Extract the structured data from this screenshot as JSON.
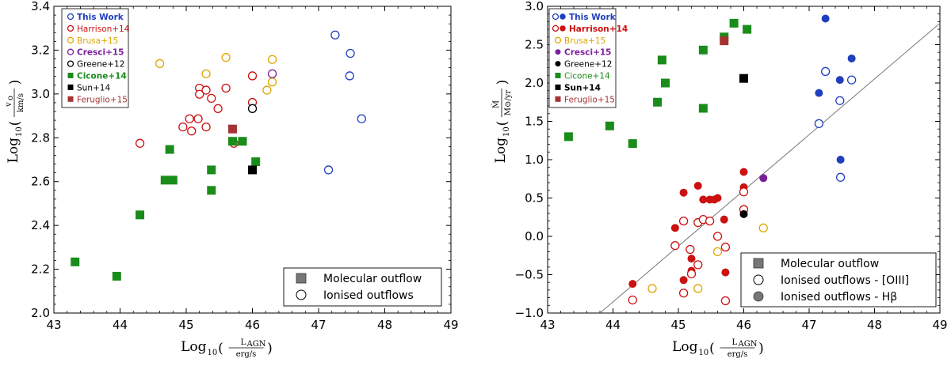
{
  "chart_data": [
    {
      "type": "scatter",
      "xlim": [
        43,
        49
      ],
      "ylim": [
        2.0,
        3.5
      ],
      "xticks": [
        "43",
        "44",
        "45",
        "46",
        "47",
        "48",
        "49"
      ],
      "yticks": [
        "2.0",
        "2.2",
        "2.4",
        "2.6",
        "2.8",
        "3.0",
        "3.2",
        "3.4"
      ],
      "xlabel": {
        "prefix": "Log",
        "sub": "10",
        "num": "L",
        "num_sub": "AGN",
        "den": "erg/s"
      },
      "ylabel": {
        "prefix": "Log",
        "sub": "10",
        "num": "v",
        "num_sub": "o",
        "den": "km/s"
      },
      "legend_top": [
        {
          "label": "This Work",
          "color": "#1f3fbf",
          "marker": "circle-open",
          "bold": true
        },
        {
          "label": "Harrison+14",
          "color": "#cc1111",
          "marker": "circle-open",
          "bold": false
        },
        {
          "label": "Brusa+15",
          "color": "#e0a400",
          "marker": "circle-open",
          "bold": false
        },
        {
          "label": "Cresci+15",
          "color": "#7a1f9a",
          "marker": "circle-open",
          "bold": true
        },
        {
          "label": "Greene+12",
          "color": "#000000",
          "marker": "circle-open",
          "bold": false
        },
        {
          "label": "Cicone+14",
          "color": "#1a8c1a",
          "marker": "square",
          "bold": true
        },
        {
          "label": "Sun+14",
          "color": "#000000",
          "marker": "square",
          "bold": false
        },
        {
          "label": "Feruglio+15",
          "color": "#a63333",
          "marker": "square",
          "bold": false
        }
      ],
      "legend_bottom": [
        {
          "label": "Molecular outflow",
          "marker": "square"
        },
        {
          "label": "Ionised outflows",
          "marker": "circle-open"
        }
      ],
      "series": [
        {
          "name": "This Work",
          "color": "#1f3fbf",
          "marker": "circle-open",
          "points": [
            [
              47.25,
              3.36
            ],
            [
              47.48,
              3.27
            ],
            [
              47.47,
              3.16
            ],
            [
              47.65,
              2.95
            ],
            [
              47.15,
              2.7
            ]
          ]
        },
        {
          "name": "Harrison+14",
          "color": "#cc1111",
          "marker": "circle-open",
          "points": [
            [
              44.3,
              2.83
            ],
            [
              44.95,
              2.91
            ],
            [
              45.05,
              2.95
            ],
            [
              45.08,
              2.89
            ],
            [
              45.18,
              2.95
            ],
            [
              45.2,
              3.1
            ],
            [
              45.2,
              3.07
            ],
            [
              45.3,
              3.09
            ],
            [
              45.3,
              2.91
            ],
            [
              45.38,
              3.05
            ],
            [
              45.48,
              3.0
            ],
            [
              45.6,
              3.1
            ],
            [
              45.72,
              2.83
            ],
            [
              46.0,
              3.16
            ],
            [
              46.0,
              3.03
            ]
          ]
        },
        {
          "name": "Brusa+15",
          "color": "#e0a400",
          "marker": "circle-open",
          "points": [
            [
              44.6,
              3.22
            ],
            [
              45.3,
              3.17
            ],
            [
              45.6,
              3.25
            ],
            [
              46.22,
              3.09
            ],
            [
              46.3,
              3.24
            ],
            [
              46.3,
              3.13
            ]
          ]
        },
        {
          "name": "Cresci+15",
          "color": "#7a1f9a",
          "marker": "circle-open",
          "points": [
            [
              46.3,
              3.17
            ]
          ]
        },
        {
          "name": "Greene+12",
          "color": "#000000",
          "marker": "circle-open",
          "points": [
            [
              46.0,
              3.0
            ]
          ]
        },
        {
          "name": "Cicone+14",
          "color": "#1a8c1a",
          "marker": "square",
          "points": [
            [
              43.32,
              2.25
            ],
            [
              43.95,
              2.18
            ],
            [
              44.3,
              2.48
            ],
            [
              44.75,
              2.8
            ],
            [
              44.68,
              2.65
            ],
            [
              44.8,
              2.65
            ],
            [
              45.38,
              2.7
            ],
            [
              45.38,
              2.6
            ],
            [
              45.7,
              2.84
            ],
            [
              45.85,
              2.84
            ],
            [
              46.05,
              2.74
            ]
          ]
        },
        {
          "name": "Sun+14",
          "color": "#000000",
          "marker": "square",
          "points": [
            [
              46.0,
              2.7
            ]
          ]
        },
        {
          "name": "Feruglio+15",
          "color": "#a63333",
          "marker": "square",
          "points": [
            [
              45.7,
              2.9
            ]
          ]
        }
      ]
    },
    {
      "type": "scatter",
      "xlim": [
        43,
        49
      ],
      "ylim": [
        -1.0,
        3.0
      ],
      "xticks": [
        "43",
        "44",
        "45",
        "46",
        "47",
        "48",
        "49"
      ],
      "yticks": [
        "−1.0",
        "−0.5",
        "0.0",
        "0.5",
        "1.0",
        "1.5",
        "2.0",
        "2.5",
        "3.0"
      ],
      "xlabel": {
        "prefix": "Log",
        "sub": "10",
        "num": "L",
        "num_sub": "AGN",
        "den": "erg/s"
      },
      "ylabel": {
        "prefix": "Log",
        "sub": "10",
        "num": "Ṁ",
        "num_sub": "",
        "den": "M⊙/yr"
      },
      "trend_line": [
        [
          43.8,
          -1.0
        ],
        [
          49.0,
          2.78
        ]
      ],
      "legend_top": [
        {
          "label": "This Work",
          "color": "#1f3fbf",
          "marker": "circle-both",
          "bold": true
        },
        {
          "label": "Harrison+14",
          "color": "#cc1111",
          "marker": "circle-both",
          "bold": true
        },
        {
          "label": "Brusa+15",
          "color": "#e0a400",
          "marker": "circle-open",
          "bold": false
        },
        {
          "label": "Cresci+15",
          "color": "#7a1f9a",
          "marker": "circle-filled",
          "bold": true
        },
        {
          "label": "Greene+12",
          "color": "#000000",
          "marker": "circle-filled",
          "bold": false
        },
        {
          "label": "Cicone+14",
          "color": "#1a8c1a",
          "marker": "square",
          "bold": false
        },
        {
          "label": "Sun+14",
          "color": "#000000",
          "marker": "square",
          "bold": true
        },
        {
          "label": "Feruglio+15",
          "color": "#a63333",
          "marker": "square",
          "bold": false
        }
      ],
      "legend_bottom": [
        {
          "label": "Molecular outflow",
          "marker": "square"
        },
        {
          "label": "Ionised outflows - [OIII]",
          "marker": "circle-open"
        },
        {
          "label": "Ionised outflows - Hβ",
          "marker": "circle-filled"
        }
      ],
      "series": [
        {
          "name": "This Work",
          "color": "#1f3fbf",
          "marker": "circle-filled",
          "points": [
            [
              47.25,
              2.84
            ],
            [
              47.65,
              2.32
            ],
            [
              47.47,
              2.04
            ],
            [
              47.15,
              1.87
            ],
            [
              47.48,
              1.0
            ]
          ]
        },
        {
          "name": "This Work",
          "color": "#1f3fbf",
          "marker": "circle-open",
          "points": [
            [
              47.25,
              2.15
            ],
            [
              47.65,
              2.04
            ],
            [
              47.47,
              1.77
            ],
            [
              47.15,
              1.47
            ],
            [
              47.48,
              0.77
            ]
          ]
        },
        {
          "name": "Harrison+14",
          "color": "#cc1111",
          "marker": "circle-filled",
          "points": [
            [
              44.3,
              -0.62
            ],
            [
              44.95,
              0.11
            ],
            [
              45.08,
              0.57
            ],
            [
              45.08,
              -0.57
            ],
            [
              45.2,
              -0.29
            ],
            [
              45.3,
              0.66
            ],
            [
              45.2,
              -0.45
            ],
            [
              45.38,
              0.48
            ],
            [
              45.48,
              0.48
            ],
            [
              45.6,
              0.5
            ],
            [
              45.7,
              0.22
            ],
            [
              45.72,
              -0.47
            ],
            [
              46.0,
              0.84
            ],
            [
              46.0,
              0.64
            ],
            [
              45.55,
              0.48
            ]
          ]
        },
        {
          "name": "Harrison+14",
          "color": "#cc1111",
          "marker": "circle-open",
          "points": [
            [
              44.3,
              -0.83
            ],
            [
              44.95,
              -0.12
            ],
            [
              45.08,
              0.2
            ],
            [
              45.08,
              -0.74
            ],
            [
              45.18,
              -0.17
            ],
            [
              45.2,
              -0.49
            ],
            [
              45.3,
              0.18
            ],
            [
              45.3,
              -0.37
            ],
            [
              45.38,
              0.22
            ],
            [
              45.48,
              0.2
            ],
            [
              45.6,
              0.0
            ],
            [
              45.72,
              -0.84
            ],
            [
              45.72,
              -0.14
            ],
            [
              46.0,
              0.58
            ],
            [
              46.0,
              0.35
            ]
          ]
        },
        {
          "name": "Brusa+15",
          "color": "#e0a400",
          "marker": "circle-open",
          "points": [
            [
              44.6,
              -0.68
            ],
            [
              45.3,
              -0.68
            ],
            [
              45.6,
              -0.2
            ],
            [
              46.3,
              0.11
            ]
          ]
        },
        {
          "name": "Cresci+15",
          "color": "#7a1f9a",
          "marker": "circle-filled",
          "points": [
            [
              46.3,
              0.76
            ]
          ]
        },
        {
          "name": "Greene+12",
          "color": "#000000",
          "marker": "circle-filled",
          "points": [
            [
              46.0,
              0.29
            ]
          ]
        },
        {
          "name": "Cicone+14",
          "color": "#1a8c1a",
          "marker": "square",
          "points": [
            [
              43.32,
              1.3
            ],
            [
              43.95,
              1.44
            ],
            [
              44.3,
              1.21
            ],
            [
              44.68,
              1.75
            ],
            [
              44.75,
              2.3
            ],
            [
              44.8,
              2.0
            ],
            [
              45.38,
              2.43
            ],
            [
              45.38,
              1.67
            ],
            [
              45.7,
              2.6
            ],
            [
              45.85,
              2.78
            ],
            [
              46.05,
              2.7
            ]
          ]
        },
        {
          "name": "Sun+14",
          "color": "#000000",
          "marker": "square",
          "points": [
            [
              46.0,
              2.06
            ]
          ]
        },
        {
          "name": "Feruglio+15",
          "color": "#a63333",
          "marker": "square",
          "points": [
            [
              45.7,
              2.55
            ]
          ]
        }
      ]
    }
  ]
}
